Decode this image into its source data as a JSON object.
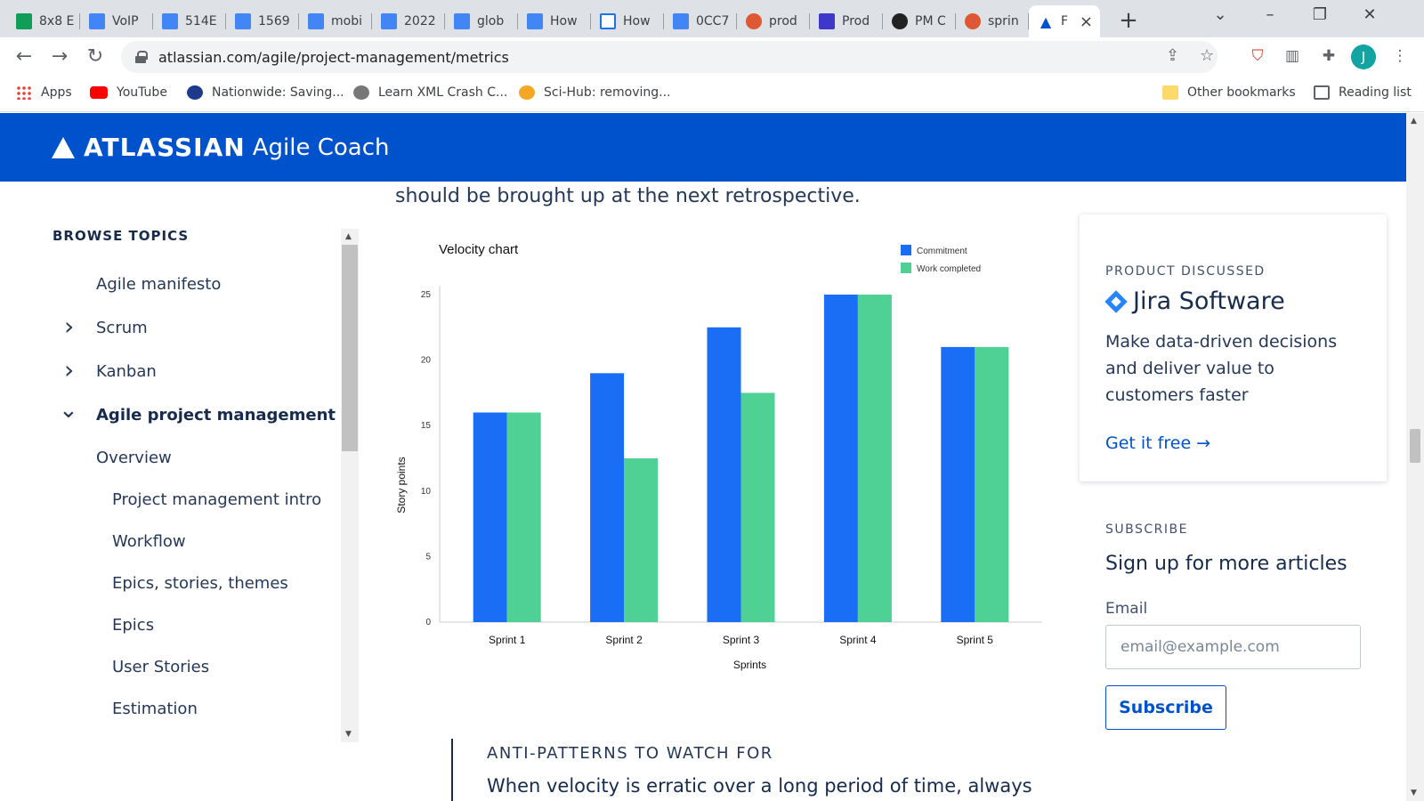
{
  "browser": {
    "tabs": [
      {
        "label": "8x8 E",
        "icon": "sheet"
      },
      {
        "label": "VoIP",
        "icon": "doc"
      },
      {
        "label": "514E",
        "icon": "doc"
      },
      {
        "label": "1569",
        "icon": "doc"
      },
      {
        "label": "mobi",
        "icon": "doc"
      },
      {
        "label": "2022",
        "icon": "doc"
      },
      {
        "label": "glob",
        "icon": "doc"
      },
      {
        "label": "How",
        "icon": "doc"
      },
      {
        "label": "How",
        "icon": "mail"
      },
      {
        "label": "0CC7",
        "icon": "doc"
      },
      {
        "label": "prod",
        "icon": "ddg"
      },
      {
        "label": "Prod",
        "icon": "purple"
      },
      {
        "label": "PM C",
        "icon": "dark"
      },
      {
        "label": "sprin",
        "icon": "ddg"
      },
      {
        "label": "F",
        "icon": "atl",
        "active": true
      }
    ],
    "url": "atlassian.com/agile/project-management/metrics",
    "bookmarks": {
      "apps": "Apps",
      "youtube": "YouTube",
      "nationwide": "Nationwide: Saving...",
      "xml": "Learn XML Crash C...",
      "scihub": "Sci-Hub: removing...",
      "other": "Other bookmarks",
      "reading": "Reading list"
    },
    "avatar_letter": "J"
  },
  "header": {
    "brand": "ATLASSIAN",
    "product": "Agile Coach"
  },
  "article": {
    "intro_tail": "should be brought up at the next retrospective.",
    "anti_title": "ANTI-PATTERNS TO WATCH FOR",
    "anti_text": "When velocity is erratic over a long period of time, always"
  },
  "sidebar": {
    "title": "BROWSE TOPICS",
    "items": [
      {
        "label": "Agile manifesto"
      },
      {
        "label": "Scrum",
        "chevron": "right"
      },
      {
        "label": "Kanban",
        "chevron": "right"
      },
      {
        "label": "Agile project management",
        "chevron": "down",
        "bold": true
      },
      {
        "label": "Overview"
      },
      {
        "label": "Project management intro"
      },
      {
        "label": "Workflow"
      },
      {
        "label": "Epics, stories, themes"
      },
      {
        "label": "Epics"
      },
      {
        "label": "User Stories"
      },
      {
        "label": "Estimation"
      }
    ]
  },
  "chart_data": {
    "type": "bar",
    "title": "Velocity chart",
    "xlabel": "Sprints",
    "ylabel": "Story points",
    "categories": [
      "Sprint 1",
      "Sprint 2",
      "Sprint 3",
      "Sprint 4",
      "Sprint 5"
    ],
    "series": [
      {
        "name": "Commitment",
        "values": [
          16,
          19,
          22.5,
          25,
          21
        ],
        "color": "#1a6ef5"
      },
      {
        "name": "Work completed",
        "values": [
          16,
          12.5,
          17.5,
          25,
          21
        ],
        "color": "#4fd195"
      }
    ],
    "ylim": [
      0,
      25
    ],
    "yticks": [
      0,
      5,
      10,
      15,
      20,
      25
    ],
    "grid": false,
    "legend": "top-right"
  },
  "card": {
    "eyebrow": "PRODUCT DISCUSSED",
    "product": "Jira Software",
    "description": "Make data-driven decisions and deliver value to customers faster",
    "cta": "Get it free →"
  },
  "subscribe": {
    "eyebrow": "SUBSCRIBE",
    "heading": "Sign up for more articles",
    "email_label": "Email",
    "email_placeholder": "email@example.com",
    "button": "Subscribe"
  },
  "colors": {
    "brand_blue": "#0052cc",
    "commitment": "#1a6ef5",
    "completed": "#4fd195"
  }
}
